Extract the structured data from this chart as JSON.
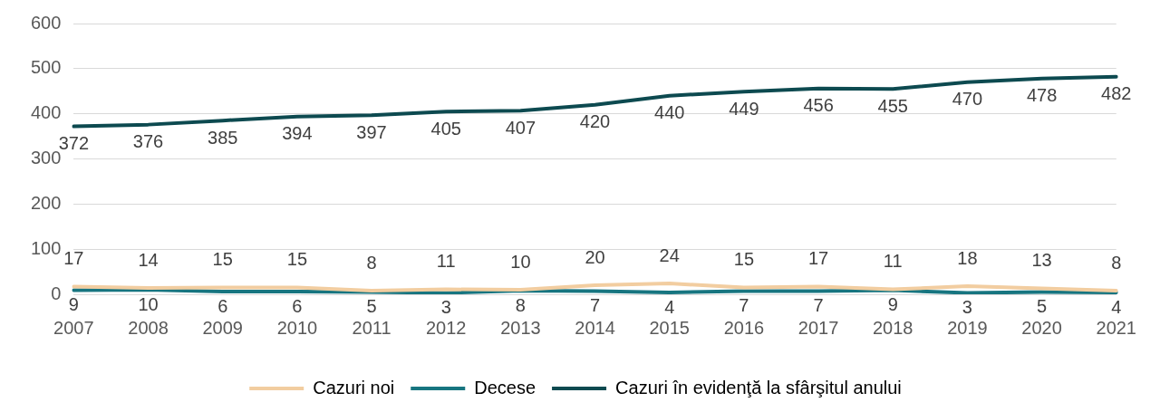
{
  "chart_data": {
    "type": "line",
    "categories": [
      "2007",
      "2008",
      "2009",
      "2010",
      "2011",
      "2012",
      "2013",
      "2014",
      "2015",
      "2016",
      "2017",
      "2018",
      "2019",
      "2020",
      "2021"
    ],
    "series": [
      {
        "name": "Cazuri noi",
        "color": "#f2cda0",
        "values": [
          17,
          14,
          15,
          15,
          8,
          11,
          10,
          20,
          24,
          15,
          17,
          11,
          18,
          13,
          8
        ]
      },
      {
        "name": "Decese",
        "color": "#177580",
        "values": [
          9,
          10,
          6,
          6,
          5,
          3,
          8,
          7,
          4,
          7,
          7,
          9,
          3,
          5,
          4
        ]
      },
      {
        "name": "Cazuri în evidenţă la sfârşitul anului",
        "color": "#0d4a50",
        "values": [
          372,
          376,
          385,
          394,
          397,
          405,
          407,
          420,
          440,
          449,
          456,
          455,
          470,
          478,
          482
        ]
      }
    ],
    "ylim": [
      0,
      600
    ],
    "yticks": [
      0,
      100,
      200,
      300,
      400,
      500,
      600
    ],
    "grid": "y",
    "legend": "bottom",
    "marker": "none",
    "line_style": "solid",
    "data_labels": true
  }
}
